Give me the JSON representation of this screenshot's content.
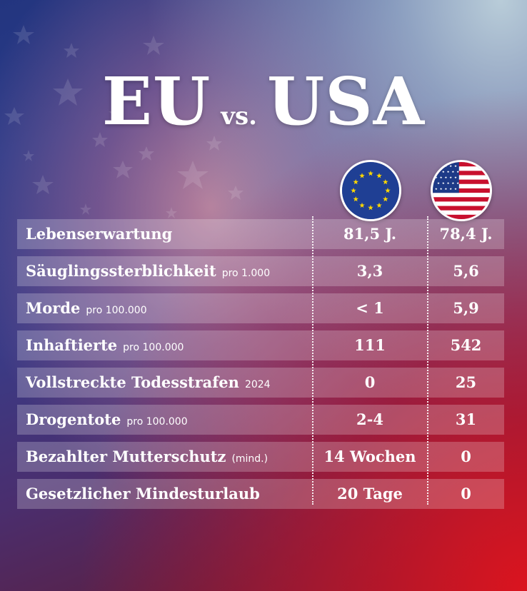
{
  "title": {
    "left": "EU",
    "middle": "vs.",
    "right": "USA"
  },
  "flags": {
    "eu": "eu-flag-icon",
    "us": "us-flag-icon"
  },
  "colors": {
    "eu_blue": "#1f3f94",
    "eu_star": "#ffd800",
    "us_red": "#c8102e",
    "us_blue": "#1d3a87"
  },
  "chart_data": {
    "type": "table",
    "columns": [
      "EU",
      "USA"
    ],
    "rows": [
      {
        "label": "Lebenserwartung",
        "unit": "",
        "eu": "81,5 J.",
        "us": "78,4 J."
      },
      {
        "label": "Säuglingssterblichkeit",
        "unit": "pro 1.000",
        "eu": "3,3",
        "us": "5,6"
      },
      {
        "label": "Morde",
        "unit": "pro 100.000",
        "eu": "< 1",
        "us": "5,9"
      },
      {
        "label": "Inhaftierte",
        "unit": "pro 100.000",
        "eu": "111",
        "us": "542"
      },
      {
        "label": "Vollstreckte Todesstrafen",
        "unit": "2024",
        "eu": "0",
        "us": "25"
      },
      {
        "label": "Drogentote",
        "unit": "pro 100.000",
        "eu": "2-4",
        "us": "31"
      },
      {
        "label": "Bezahlter Mutterschutz",
        "unit": "(mind.)",
        "eu": "14 Wochen",
        "us": "0"
      },
      {
        "label": "Gesetzlicher Mindesturlaub",
        "unit": "",
        "eu": "20 Tage",
        "us": "0"
      }
    ]
  }
}
